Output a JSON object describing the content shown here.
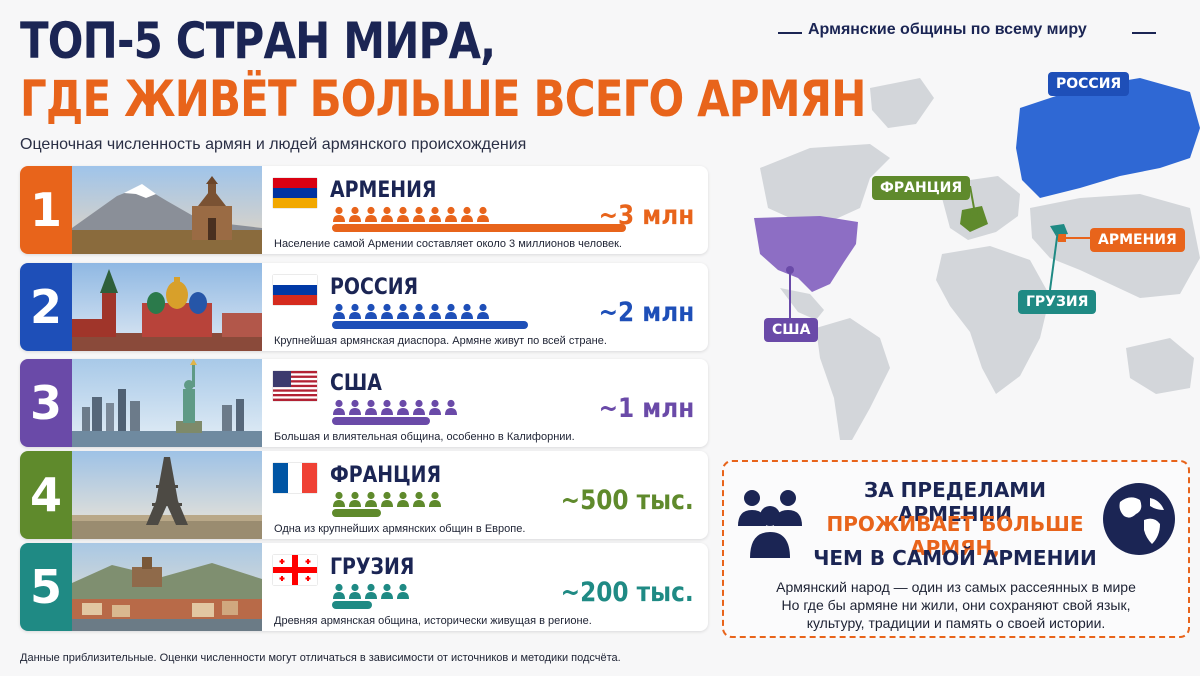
{
  "title_line1": "ТОП-5 СТРАН МИРА,",
  "title_line2": "ГДЕ ЖИВЁТ БОЛЬШЕ ВСЕГО АРМЯН",
  "subtitle": "Оценочная численность армян и людей армянского происхождения",
  "map_title": "Армянские общины по всему миру",
  "colors": {
    "navy": "#1b2554",
    "accent": "#e8641b",
    "armenia": "#e8641b",
    "russia": "#1e4fb8",
    "usa": "#6a4aa8",
    "france": "#5f8a2c",
    "georgia": "#1f8a84"
  },
  "chart_data": {
    "type": "bar",
    "unit": "people",
    "categories": [
      "АРМЕНИЯ",
      "РОССИЯ",
      "США",
      "ФРАНЦИЯ",
      "ГРУЗИЯ"
    ],
    "values": [
      3000000,
      2000000,
      1000000,
      500000,
      200000
    ],
    "labels": [
      "~3 млн",
      "~2 млн",
      "~1 млн",
      "~500 тыс.",
      "~200 тыс."
    ],
    "ranks": [
      "1",
      "2",
      "3",
      "4",
      "5"
    ],
    "icon_counts": [
      10,
      10,
      8,
      7,
      5
    ],
    "title": "ТОП-5 СТРАН МИРА, ГДЕ ЖИВЁТ БОЛЬШЕ ВСЕГО АРМЯН"
  },
  "rows": [
    {
      "rank": "1",
      "name": "АРМЕНИЯ",
      "value_label": "~3 млн",
      "desc": "Население самой Армении составляет около 3 миллионов человек.",
      "color": "#e8641b",
      "flag": "armenia-flag-icon",
      "photo": "ararat-monastery-photo"
    },
    {
      "rank": "2",
      "name": "РОССИЯ",
      "value_label": "~2 млн",
      "desc": "Крупнейшая армянская диаспора. Армяне живут по всей стране.",
      "color": "#1e4fb8",
      "flag": "russia-flag-icon",
      "photo": "moscow-kremlin-photo"
    },
    {
      "rank": "3",
      "name": "США",
      "value_label": "~1 млн",
      "desc": "Большая и влиятельная община, особенно в Калифорнии.",
      "color": "#6a4aa8",
      "flag": "usa-flag-icon",
      "photo": "statue-of-liberty-photo"
    },
    {
      "rank": "4",
      "name": "ФРАНЦИЯ",
      "value_label": "~500 тыс.",
      "desc": "Одна из крупнейших армянских общин в Европе.",
      "color": "#5f8a2c",
      "flag": "france-flag-icon",
      "photo": "eiffel-tower-photo"
    },
    {
      "rank": "5",
      "name": "ГРУЗИЯ",
      "value_label": "~200 тыс.",
      "desc": "Древняя армянская община, исторически живущая в регионе.",
      "color": "#1f8a84",
      "flag": "georgia-flag-icon",
      "photo": "tbilisi-photo"
    }
  ],
  "map_labels": {
    "russia": "РОССИЯ",
    "france": "ФРАНЦИЯ",
    "armenia": "АРМЕНИЯ",
    "georgia": "ГРУЗИЯ",
    "usa": "США"
  },
  "callout": {
    "line1": "ЗА ПРЕДЕЛАМИ АРМЕНИИ",
    "line2": "ПРОЖИВАЕТ БОЛЬШЕ АРМЯН,",
    "line3": "ЧЕМ В САМОЙ АРМЕНИИ",
    "body_line1": "Армянский народ — один из самых рассеянных в мире",
    "body_line2": "Но где бы армяне ни жили, они сохраняют свой язык,",
    "body_line3": "культуру, традиции и память о своей истории."
  },
  "footnote": "Данные приблизительные. Оценки численности могут отличаться в зависимости от источников и методики подсчёта."
}
